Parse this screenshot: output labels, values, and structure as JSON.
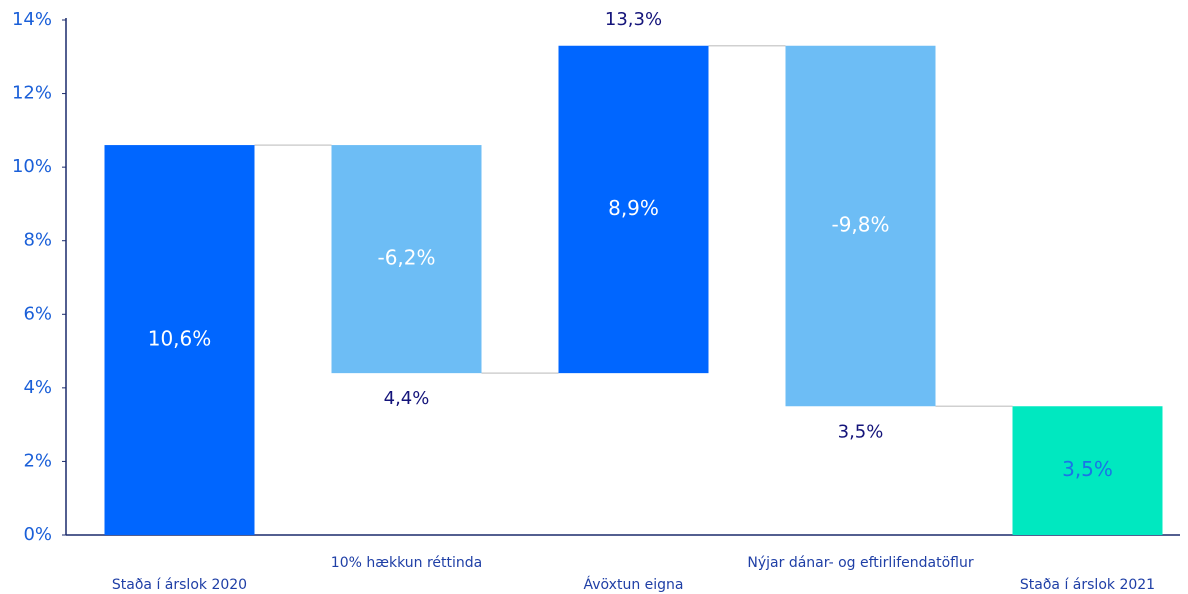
{
  "chart_data": {
    "type": "waterfall",
    "categories": [
      "Staða í árslok 2020",
      "10% hækkun réttinda",
      "Ávöxtun eigna",
      "Nýjar dánar- og eftirlifendatöflur",
      "Staða í árslok 2021"
    ],
    "measure": [
      "absolute",
      "relative",
      "relative",
      "relative",
      "absolute"
    ],
    "values": [
      10.6,
      -6.2,
      8.9,
      -9.8,
      3.5
    ],
    "value_labels": [
      "10,6%",
      "-6,2%",
      "8,9%",
      "-9,8%",
      "3,5%"
    ],
    "colors": [
      "#0066ff",
      "#6dbdf5",
      "#0066ff",
      "#6dbdf5",
      "#00e8c0"
    ],
    "value_label_colors": [
      "#ffffff",
      "#ffffff",
      "#ffffff",
      "#ffffff",
      "#1a73e8"
    ],
    "subtotals": [
      null,
      4.4,
      13.3,
      3.5,
      null
    ],
    "subtotal_labels": [
      null,
      "4,4%",
      "13,3%",
      "3,5%",
      null
    ],
    "ylim": [
      0,
      14
    ],
    "yticks": [
      {
        "value": 0,
        "label": "0%"
      },
      {
        "value": 2,
        "label": "2%"
      },
      {
        "value": 4,
        "label": "4%"
      },
      {
        "value": 6,
        "label": "6%"
      },
      {
        "value": 8,
        "label": "8%"
      },
      {
        "value": 10,
        "label": "10%"
      },
      {
        "value": 12,
        "label": "12%"
      },
      {
        "value": 14,
        "label": "14%"
      }
    ],
    "connector_color": "#d0d0d0"
  }
}
